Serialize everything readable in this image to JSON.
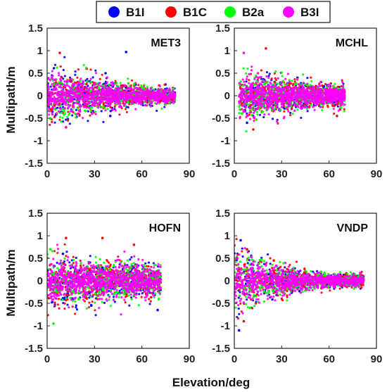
{
  "legend": {
    "placement": "top-center",
    "entries": [
      {
        "label": "B1I",
        "color": "#0000ff"
      },
      {
        "label": "B1C",
        "color": "#ff0000"
      },
      {
        "label": "B2a",
        "color": "#00ff00"
      },
      {
        "label": "B3I",
        "color": "#ff00ff"
      }
    ]
  },
  "shared_ylabel": "Multipath/m",
  "shared_xlabel": "Elevation/deg",
  "chart_data": [
    {
      "type": "scatter",
      "station": "MET3",
      "xlim": [
        0,
        90
      ],
      "ylim": [
        -1.5,
        1.5
      ],
      "xticks": [
        "0",
        "30",
        "60",
        "90"
      ],
      "yticks": [
        "1.5",
        "1",
        "0.5",
        "0",
        "-0.5",
        "-1",
        "-1.5"
      ],
      "x_coverage": [
        0,
        81
      ],
      "spread_envelope": [
        {
          "x": 2,
          "amp": 0.7
        },
        {
          "x": 30,
          "amp": 0.45
        },
        {
          "x": 60,
          "amp": 0.25
        },
        {
          "x": 81,
          "amp": 0.2
        }
      ],
      "series": [
        {
          "name": "B1I",
          "color": "#0000ff",
          "points": [
            [
              50,
              0.97
            ],
            [
              37,
              0.5
            ],
            [
              40,
              -0.45
            ],
            [
              75,
              0.25
            ],
            [
              65,
              -0.2
            ]
          ]
        },
        {
          "name": "B1C",
          "color": "#ff0000",
          "points": [
            [
              8,
              0.95
            ],
            [
              25,
              0.6
            ],
            [
              12,
              -0.7
            ],
            [
              78,
              -0.1
            ]
          ]
        },
        {
          "name": "B2a",
          "color": "#00ff00",
          "points": [
            [
              2,
              -0.5
            ],
            [
              5,
              -0.3
            ],
            [
              72,
              0.1
            ],
            [
              80,
              0.15
            ]
          ]
        },
        {
          "name": "B3I",
          "color": "#ff00ff",
          "points": [
            [
              3,
              0.4
            ],
            [
              20,
              0.2
            ],
            [
              45,
              -0.1
            ],
            [
              70,
              0.05
            ]
          ]
        }
      ]
    },
    {
      "type": "scatter",
      "station": "MCHL",
      "xlim": [
        0,
        90
      ],
      "ylim": [
        -1.5,
        1.5
      ],
      "xticks": [
        "0",
        "30",
        "60",
        "90"
      ],
      "yticks": [
        "1.5",
        "1",
        "0.5",
        "0",
        "-0.5",
        "-1",
        "-1.5"
      ],
      "x_coverage": [
        3,
        70
      ],
      "spread_envelope": [
        {
          "x": 3,
          "amp": 0.6
        },
        {
          "x": 30,
          "amp": 0.45
        },
        {
          "x": 60,
          "amp": 0.3
        },
        {
          "x": 70,
          "amp": 0.3
        }
      ],
      "series": [
        {
          "name": "B1I",
          "color": "#0000ff",
          "points": [
            [
              8,
              -0.6
            ],
            [
              40,
              0.4
            ],
            [
              68,
              0.1
            ]
          ]
        },
        {
          "name": "B1C",
          "color": "#ff0000",
          "points": [
            [
              20,
              1.05
            ],
            [
              65,
              -0.45
            ],
            [
              67,
              -0.3
            ],
            [
              12,
              -0.75
            ]
          ]
        },
        {
          "name": "B2a",
          "color": "#00ff00",
          "points": [
            [
              63,
              0.2
            ],
            [
              66,
              0.15
            ],
            [
              5,
              -0.4
            ]
          ]
        },
        {
          "name": "B3I",
          "color": "#ff00ff",
          "points": [
            [
              6,
              0.95
            ],
            [
              15,
              0.5
            ],
            [
              50,
              0.1
            ]
          ]
        }
      ]
    },
    {
      "type": "scatter",
      "station": "HOFN",
      "xlim": [
        0,
        90
      ],
      "ylim": [
        -1.5,
        1.5
      ],
      "xticks": [
        "0",
        "30",
        "60",
        "90"
      ],
      "yticks": [
        "1.5",
        "1",
        "0.5",
        "0",
        "-0.5",
        "-1",
        "-1.5"
      ],
      "x_coverage": [
        0,
        72
      ],
      "spread_envelope": [
        {
          "x": 0,
          "amp": 0.7
        },
        {
          "x": 30,
          "amp": 0.55
        },
        {
          "x": 60,
          "amp": 0.45
        },
        {
          "x": 72,
          "amp": 0.4
        }
      ],
      "series": [
        {
          "name": "B1I",
          "color": "#0000ff",
          "points": [
            [
              70,
              -0.65
            ],
            [
              28,
              -0.55
            ],
            [
              10,
              0.6
            ]
          ]
        },
        {
          "name": "B1C",
          "color": "#ff0000",
          "points": [
            [
              12,
              0.95
            ],
            [
              35,
              0.95
            ],
            [
              55,
              0.8
            ]
          ]
        },
        {
          "name": "B2a",
          "color": "#00ff00",
          "points": [
            [
              4,
              -0.95
            ],
            [
              2,
              0.7
            ],
            [
              20,
              -0.4
            ]
          ]
        },
        {
          "name": "B3I",
          "color": "#ff00ff",
          "points": [
            [
              30,
              0.3
            ],
            [
              50,
              -0.2
            ],
            [
              65,
              0.25
            ]
          ]
        }
      ]
    },
    {
      "type": "scatter",
      "station": "VNDP",
      "xlim": [
        0,
        90
      ],
      "ylim": [
        -1.5,
        1.5
      ],
      "xticks": [
        "0",
        "30",
        "60",
        "90"
      ],
      "yticks": [
        "1.5",
        "1",
        "0.5",
        "0",
        "-0.5",
        "-1",
        "-1.5"
      ],
      "x_coverage": [
        0,
        82
      ],
      "spread_envelope": [
        {
          "x": 0,
          "amp": 0.85
        },
        {
          "x": 15,
          "amp": 0.6
        },
        {
          "x": 40,
          "amp": 0.3
        },
        {
          "x": 60,
          "amp": 0.18
        },
        {
          "x": 82,
          "amp": 0.15
        }
      ],
      "series": [
        {
          "name": "B1I",
          "color": "#0000ff",
          "points": [
            [
              4,
              0.9
            ],
            [
              3,
              -1.1
            ],
            [
              75,
              0.1
            ]
          ]
        },
        {
          "name": "B1C",
          "color": "#ff0000",
          "points": [
            [
              8,
              0.7
            ],
            [
              25,
              0.45
            ],
            [
              6,
              -0.9
            ]
          ]
        },
        {
          "name": "B2a",
          "color": "#00ff00",
          "points": [
            [
              55,
              0.2
            ],
            [
              78,
              -0.1
            ],
            [
              10,
              -0.6
            ]
          ]
        },
        {
          "name": "B3I",
          "color": "#ff00ff",
          "points": [
            [
              2,
              0.5
            ],
            [
              30,
              0.1
            ],
            [
              60,
              0.0
            ]
          ]
        }
      ]
    }
  ]
}
